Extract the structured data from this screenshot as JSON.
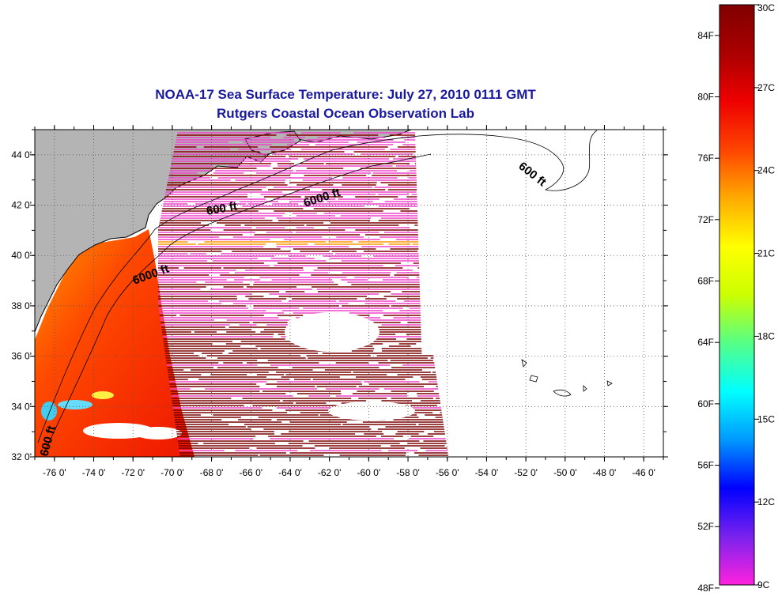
{
  "title": {
    "line1": "NOAA-17 Sea Surface Temperature:  July 27, 2010 0111 GMT",
    "line2": "Rutgers Coastal Ocean Observation Lab"
  },
  "map": {
    "lon_range": [
      -77,
      -45
    ],
    "lat_range": [
      32,
      45
    ],
    "lon_ticks": [
      "-76 0'",
      "-74 0'",
      "-72 0'",
      "-70 0'",
      "-68 0'",
      "-66 0'",
      "-64 0'",
      "-62 0'",
      "-60 0'",
      "-58 0'",
      "-56 0'",
      "-54 0'",
      "-52 0'",
      "-50 0'",
      "-48 0'",
      "-46 0'"
    ],
    "lon_tick_values": [
      -76,
      -74,
      -72,
      -70,
      -68,
      -66,
      -64,
      -62,
      -60,
      -58,
      -56,
      -54,
      -52,
      -50,
      -48,
      -46
    ],
    "lat_ticks": [
      "44 0'",
      "42 0'",
      "40 0'",
      "38 0'",
      "36 0'",
      "34 0'",
      "32 0'"
    ],
    "lat_tick_values": [
      44,
      42,
      40,
      38,
      36,
      34,
      32
    ],
    "grid": "dotted",
    "land_color": "#b4b4b4",
    "contour_labels": [
      "600 ft",
      "6000 ft",
      "6000 ft",
      "600 ft",
      "600 ft"
    ]
  },
  "colorbar": {
    "fahrenheit_labels": [
      "84F",
      "80F",
      "76F",
      "72F",
      "68F",
      "64F",
      "60F",
      "56F",
      "52F",
      "48F"
    ],
    "fahrenheit_values": [
      84,
      80,
      76,
      72,
      68,
      64,
      60,
      56,
      52,
      48
    ],
    "celsius_labels": [
      "30C",
      "27C",
      "24C",
      "21C",
      "18C",
      "15C",
      "12C",
      "9C"
    ],
    "celsius_values": [
      30,
      27,
      24,
      21,
      18,
      15,
      12,
      9
    ],
    "range_c": [
      9,
      30
    ],
    "palette": [
      "#ff22dd",
      "#7a22ee",
      "#0000ff",
      "#0099ff",
      "#00ffff",
      "#55ff88",
      "#ccff00",
      "#ffff00",
      "#ffaa00",
      "#ff4400",
      "#ee0000",
      "#aa0000",
      "#800000"
    ]
  }
}
